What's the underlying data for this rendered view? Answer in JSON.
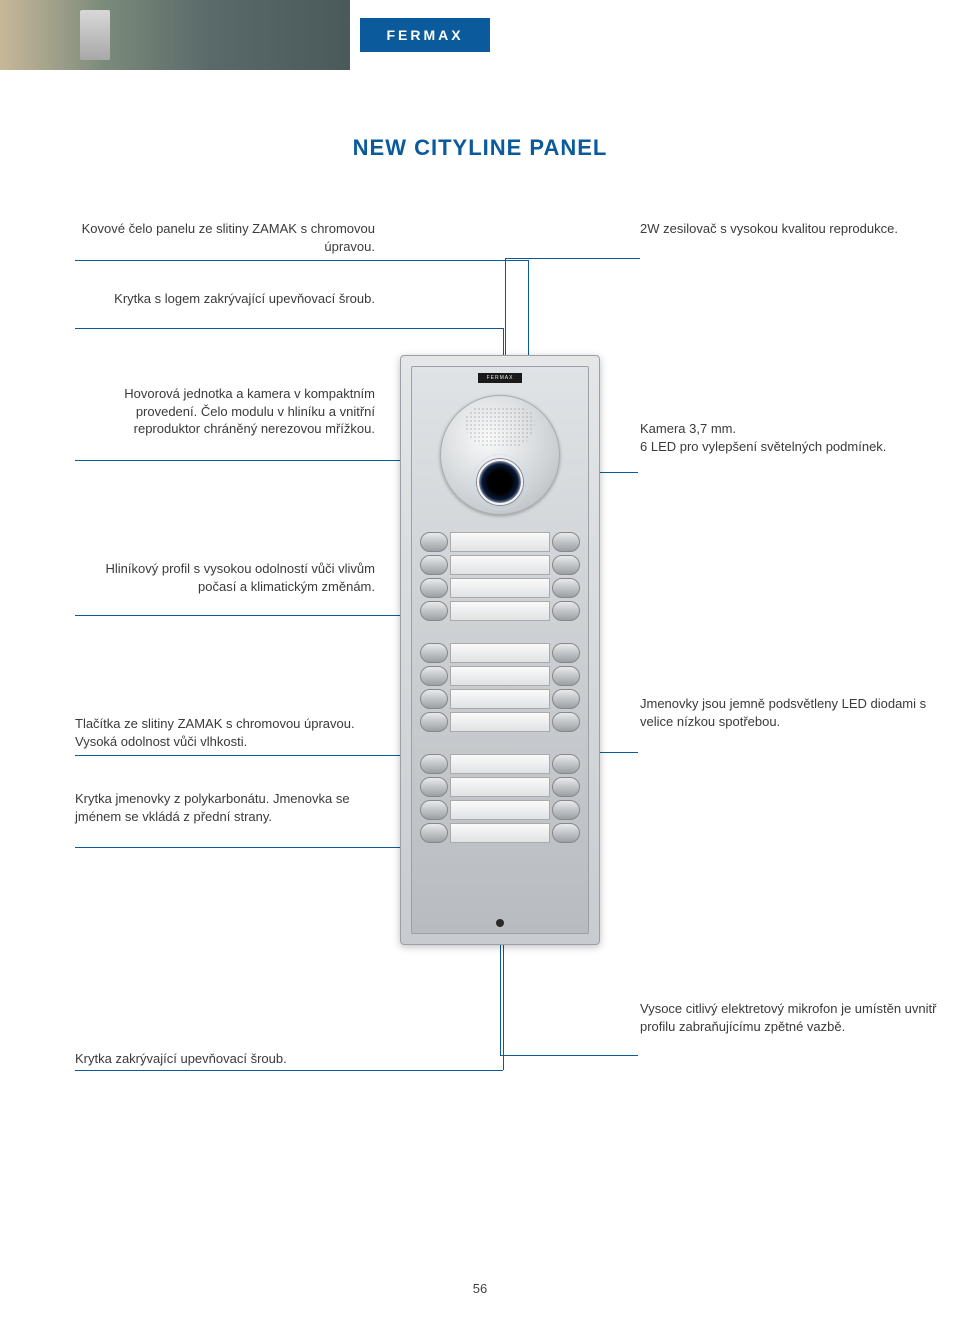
{
  "brand": "FERMAX",
  "title": "NEW CITYLINE PANEL",
  "page_number": "56",
  "colors": {
    "accent": "#0a5a9c",
    "text": "#3a3a3a",
    "panel_light": "#e4e6e8",
    "panel_dark": "#c8ccd0"
  },
  "callouts": {
    "l1": "Kovové čelo panelu ze slitiny ZAMAK s chromovou úpravou.",
    "r1": "2W zesilovač s vysokou kvalitou reprodukce.",
    "l2": "Krytka s logem zakrývající upevňovací šroub.",
    "l3": "Hovorová jednotka a kamera v kompakt­ním provedení. Čelo modulu v hliníku a vnitřní reproduktor chráněný nerezovou mřížkou.",
    "r3": "Kamera 3,7 mm.\n6 LED  pro vylepšení světelných podmínek.",
    "l4": "Hliníkový profil s vysokou odolností vůči vlivům počasí a klimatickým změnám.",
    "l5": "Tlačítka ze slitiny ZAMAK s chromovou úpravou. Vysoká odolnost vůči vlhkosti.",
    "r5": "Jmenovky jsou jemně podsvětleny LED diodami s velice nízkou spotřebou.",
    "l6": "Krytka jmenovky z polykarbonátu. Jmenovka se jménem se vkládá z přední strany.",
    "l7": "Krytka zakrývající upevňovací šroub.",
    "r7": "Vysoce citlivý elektretový mikrofon je umístěn uvnitř profilu zabraňujícímu zpětné vazbě."
  },
  "panel": {
    "button_groups": [
      4,
      4,
      4
    ],
    "panel_logo": "FERMAX"
  }
}
